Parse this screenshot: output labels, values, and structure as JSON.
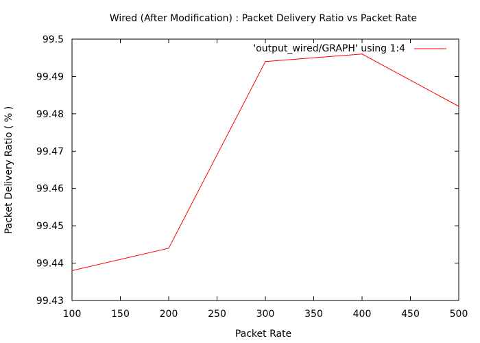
{
  "chart_data": {
    "type": "line",
    "title": "Wired (After Modification) : Packet Delivery Ratio vs Packet Rate",
    "xlabel": "Packet Rate",
    "ylabel": "Packet Delivery Ratio ( % )",
    "xlim": [
      100,
      500
    ],
    "ylim": [
      99.43,
      99.5
    ],
    "xticks": [
      "100",
      "150",
      "200",
      "250",
      "300",
      "350",
      "400",
      "450",
      "500"
    ],
    "yticks": [
      "99.43",
      "99.44",
      "99.45",
      "99.46",
      "99.47",
      "99.48",
      "99.49",
      "99.5"
    ],
    "grid": false,
    "legend_position": "top-right",
    "series": [
      {
        "name": "'output_wired/GRAPH' using 1:4",
        "color": "#ff0000",
        "x": [
          100,
          200,
          300,
          400,
          500
        ],
        "y": [
          99.438,
          99.444,
          99.494,
          99.496,
          99.482
        ]
      }
    ]
  }
}
